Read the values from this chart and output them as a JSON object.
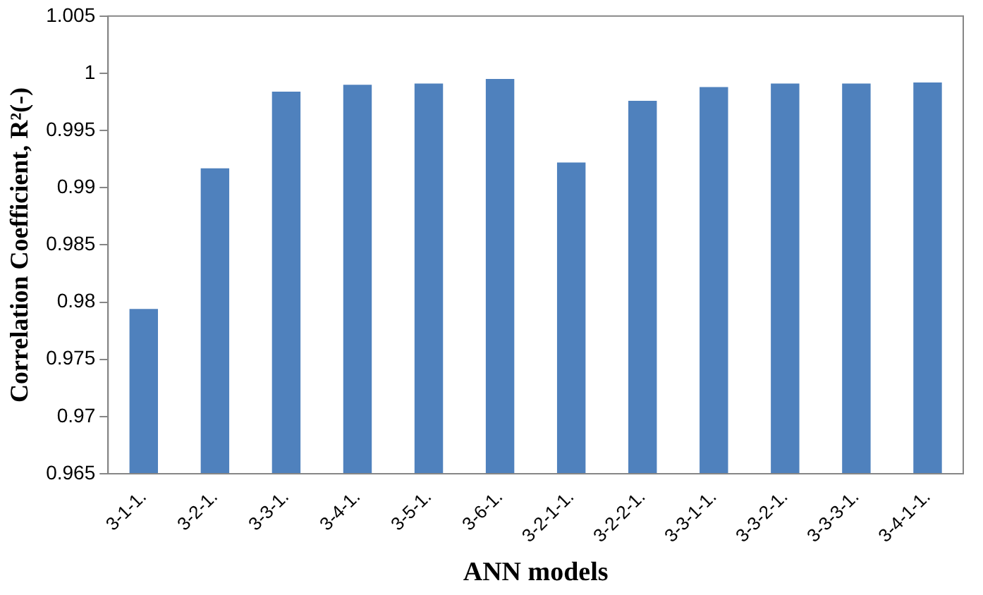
{
  "chart_data": {
    "type": "bar",
    "xlabel": "ANN models",
    "ylabel": "Correlation Coefficient, R²(-)",
    "categories": [
      "3-1-1.",
      "3-2-1.",
      "3-3-1.",
      "3-4-1.",
      "3-5-1.",
      "3-6-1.",
      "3-2-1-1.",
      "3-2-2-1.",
      "3-3-1-1.",
      "3-3-2-1.",
      "3-3-3-1.",
      "3-4-1-1."
    ],
    "values": [
      0.9794,
      0.9917,
      0.9984,
      0.999,
      0.9991,
      0.9995,
      0.9922,
      0.9976,
      0.9988,
      0.9991,
      0.9991,
      0.9992
    ],
    "color": "#4f81bd",
    "ylim": [
      0.965,
      1.005
    ],
    "yticks": [
      0.965,
      0.97,
      0.975,
      0.98,
      0.985,
      0.99,
      0.995,
      {
        "value": 1,
        "label": "1"
      },
      1.005
    ],
    "grid": false,
    "legend": false
  }
}
